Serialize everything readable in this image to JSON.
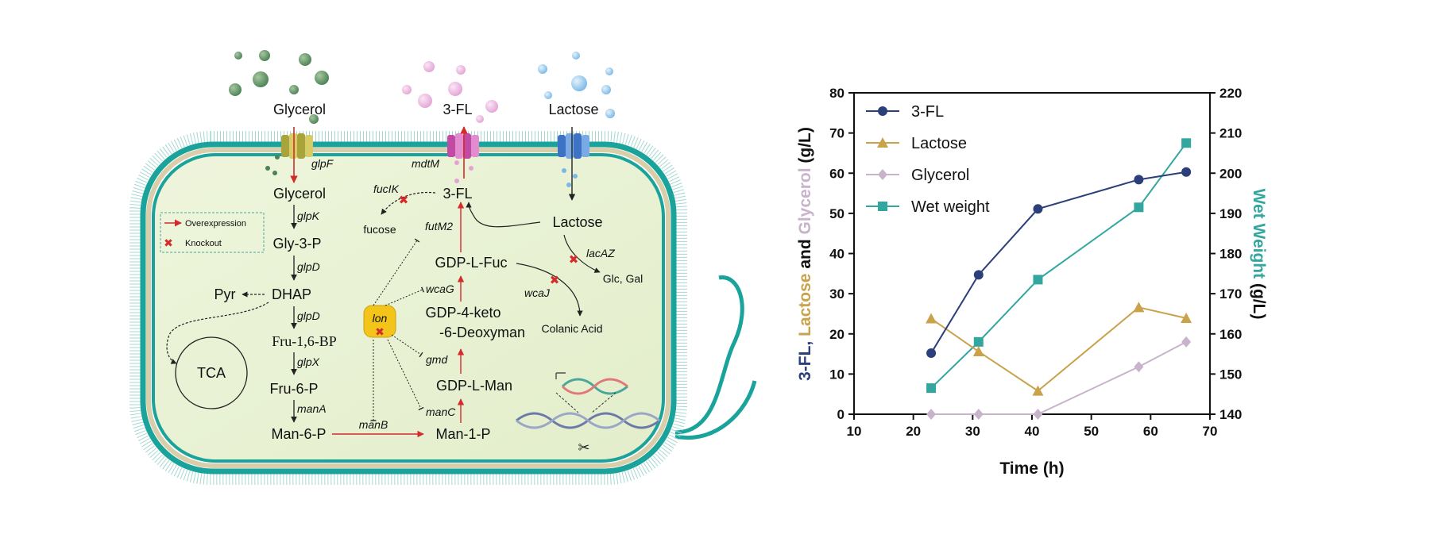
{
  "diagram": {
    "inputs": {
      "glycerol": "Glycerol",
      "fl": "3-FL",
      "lactose": "Lactose"
    },
    "transporters": {
      "glpF": "glpF",
      "mdtM": "mdtM"
    },
    "metabolites": {
      "glycerol": "Glycerol",
      "gly3p": "Gly-3-P",
      "dhap": "DHAP",
      "pyr": "Pyr",
      "tca": "TCA",
      "fru16bp": "Fru-1,6-BP",
      "fru6p": "Fru-6-P",
      "man6p": "Man-6-P",
      "man1p": "Man-1-P",
      "gdpman": "GDP-L-Man",
      "gdpketo1": "GDP-4-keto",
      "gdpketo2": "-6-Deoxyman",
      "gdpfuc": "GDP-L-Fuc",
      "fl": "3-FL",
      "fucose": "fucose",
      "lactose": "Lactose",
      "glcgal": "Glc, Gal",
      "colanic": "Colanic Acid"
    },
    "genes": {
      "glpK": "glpK",
      "glpD1": "glpD",
      "glpD2": "glpD",
      "glpX": "glpX",
      "manA": "manA",
      "manB": "manB",
      "manC": "manC",
      "gmd": "gmd",
      "wcaG": "wcaG",
      "wcaJ": "wcaJ",
      "futM2": "futM2",
      "fucIK": "fucIK",
      "lacAZ": "lacAZ",
      "lon": "lon"
    },
    "legend": {
      "overexpression": "Overexpression",
      "knockout": "Knockout"
    }
  },
  "chart_data": {
    "type": "line",
    "xlabel": "Time (h)",
    "xlim": [
      10,
      70
    ],
    "xticks": [
      10,
      20,
      30,
      40,
      50,
      60,
      70
    ],
    "ylim_left": [
      0,
      80
    ],
    "yticks_left": [
      0,
      10,
      20,
      30,
      40,
      50,
      60,
      70,
      80
    ],
    "ylim_right": [
      140,
      220
    ],
    "yticks_right": [
      140,
      150,
      160,
      170,
      180,
      190,
      200,
      210,
      220
    ],
    "ylabel_left_parts": [
      {
        "text": "3-FL, ",
        "color": "#2b3f7a"
      },
      {
        "text": "Lactose",
        "color": "#c9a24a"
      },
      {
        "text": " and ",
        "color": "#111111"
      },
      {
        "text": "Glycerol",
        "color": "#c9b3cc"
      },
      {
        "text": " (g/L)",
        "color": "#111111"
      }
    ],
    "ylabel_right_parts": [
      {
        "text": "Wet Weight",
        "color": "#34a6a0"
      },
      {
        "text": " (g/L)",
        "color": "#111111"
      }
    ],
    "legend_position": "top-left",
    "series": [
      {
        "name": "3-FL",
        "axis": "left",
        "marker": "circle",
        "color": "#2b3f7a",
        "x": [
          23,
          31,
          41,
          58,
          66
        ],
        "y": [
          15.2,
          34.7,
          51.1,
          58.4,
          60.3
        ]
      },
      {
        "name": "Lactose",
        "axis": "left",
        "marker": "triangle",
        "color": "#c9a24a",
        "x": [
          23,
          31,
          41,
          58,
          66
        ],
        "y": [
          23.8,
          15.6,
          5.8,
          26.6,
          23.9
        ]
      },
      {
        "name": "Glycerol",
        "axis": "left",
        "marker": "diamond",
        "color": "#c9b3cc",
        "x": [
          23,
          31,
          41,
          58,
          66
        ],
        "y": [
          0,
          0,
          0,
          11.8,
          18.0
        ]
      },
      {
        "name": "Wet weight",
        "axis": "right",
        "marker": "square",
        "color": "#34a6a0",
        "x": [
          23,
          31,
          41,
          58,
          66
        ],
        "y": [
          146.5,
          158.0,
          173.5,
          191.5,
          207.5
        ]
      }
    ]
  }
}
